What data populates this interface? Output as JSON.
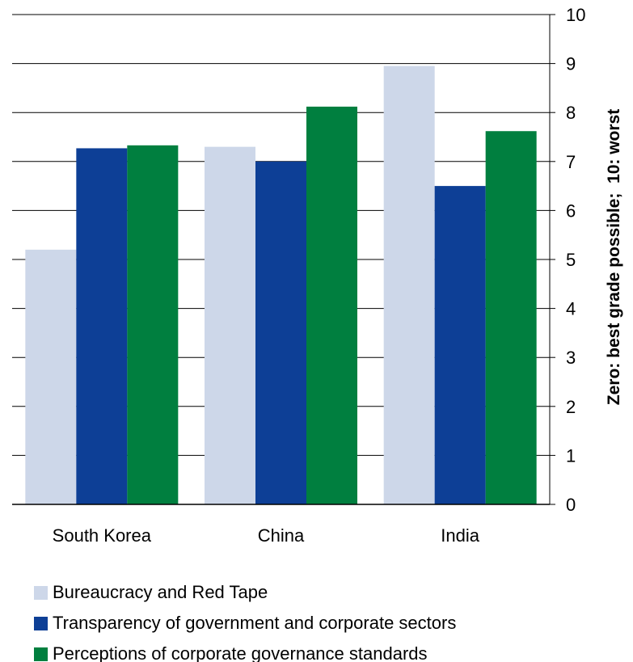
{
  "chart_data": {
    "type": "bar",
    "categories": [
      "South Korea",
      "China",
      "India"
    ],
    "series": [
      {
        "name": "Bureaucracy and Red Tape",
        "values": [
          5.2,
          7.3,
          8.95
        ],
        "color": "#cdd7e9"
      },
      {
        "name": "Transparency of government and corporate sectors",
        "values": [
          7.27,
          7.0,
          6.5
        ],
        "color": "#0d3f96"
      },
      {
        "name": "Perceptions of corporate governance standards",
        "values": [
          7.33,
          8.12,
          7.62
        ],
        "color": "#007f3f"
      }
    ],
    "ylabel": "Zero: best grade possible;  10: worst",
    "ylim": [
      0,
      10
    ],
    "yticks": [
      0,
      1,
      2,
      3,
      4,
      5,
      6,
      7,
      8,
      9,
      10
    ],
    "y_axis_side": "right",
    "grid": true,
    "legend_position": "bottom-left"
  }
}
